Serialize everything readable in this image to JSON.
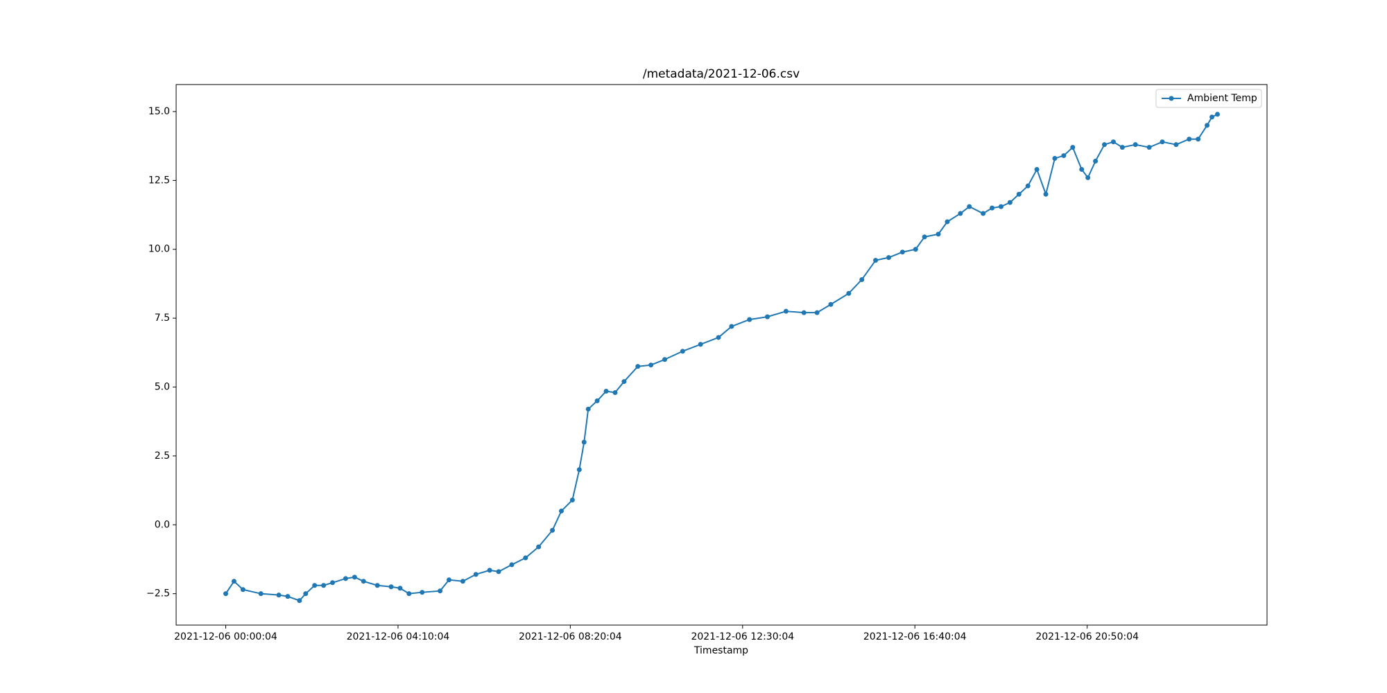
{
  "chart_data": {
    "type": "line",
    "title": "/metadata/2021-12-06.csv",
    "x_label": "Timestamp",
    "x": [
      "2021-12-06 00:00:04",
      "2021-12-06 00:12:04",
      "2021-12-06 00:25:04",
      "2021-12-06 00:51:04",
      "2021-12-06 01:17:04",
      "2021-12-06 01:30:04",
      "2021-12-06 01:47:04",
      "2021-12-06 01:56:04",
      "2021-12-06 02:09:04",
      "2021-12-06 02:22:04",
      "2021-12-06 02:35:04",
      "2021-12-06 02:54:04",
      "2021-12-06 03:07:04",
      "2021-12-06 03:20:04",
      "2021-12-06 03:40:04",
      "2021-12-06 04:00:04",
      "2021-12-06 04:13:04",
      "2021-12-06 04:26:04",
      "2021-12-06 04:45:04",
      "2021-12-06 05:11:04",
      "2021-12-06 05:24:04",
      "2021-12-06 05:44:04",
      "2021-12-06 06:03:04",
      "2021-12-06 06:23:04",
      "2021-12-06 06:36:04",
      "2021-12-06 06:55:04",
      "2021-12-06 07:15:04",
      "2021-12-06 07:34:04",
      "2021-12-06 07:54:04",
      "2021-12-06 08:07:04",
      "2021-12-06 08:23:04",
      "2021-12-06 08:33:04",
      "2021-12-06 08:40:04",
      "2021-12-06 08:46:04",
      "2021-12-06 08:59:04",
      "2021-12-06 09:12:04",
      "2021-12-06 09:25:04",
      "2021-12-06 09:38:04",
      "2021-12-06 09:58:04",
      "2021-12-06 10:17:04",
      "2021-12-06 10:37:04",
      "2021-12-06 11:03:04",
      "2021-12-06 11:29:04",
      "2021-12-06 11:55:04",
      "2021-12-06 12:14:04",
      "2021-12-06 12:40:04",
      "2021-12-06 13:06:04",
      "2021-12-06 13:33:04",
      "2021-12-06 13:59:04",
      "2021-12-06 14:18:04",
      "2021-12-06 14:38:04",
      "2021-12-06 15:04:04",
      "2021-12-06 15:23:04",
      "2021-12-06 15:43:04",
      "2021-12-06 16:02:04",
      "2021-12-06 16:22:04",
      "2021-12-06 16:41:04",
      "2021-12-06 16:54:04",
      "2021-12-06 17:14:04",
      "2021-12-06 17:27:04",
      "2021-12-06 17:46:04",
      "2021-12-06 17:59:04",
      "2021-12-06 18:19:04",
      "2021-12-06 18:32:04",
      "2021-12-06 18:45:04",
      "2021-12-06 18:58:04",
      "2021-12-06 19:11:04",
      "2021-12-06 19:24:04",
      "2021-12-06 19:37:04",
      "2021-12-06 19:50:04",
      "2021-12-06 20:03:04",
      "2021-12-06 20:16:04",
      "2021-12-06 20:29:04",
      "2021-12-06 20:42:04",
      "2021-12-06 20:51:04",
      "2021-12-06 21:02:04",
      "2021-12-06 21:15:04",
      "2021-12-06 21:28:04",
      "2021-12-06 21:41:04",
      "2021-12-06 22:00:04",
      "2021-12-06 22:20:04",
      "2021-12-06 22:39:04",
      "2021-12-06 22:59:04",
      "2021-12-06 23:18:04",
      "2021-12-06 23:31:04",
      "2021-12-06 23:44:04",
      "2021-12-06 23:51:04",
      "2021-12-06 23:59:04"
    ],
    "series": [
      {
        "name": "Ambient Temp",
        "color": "#1f77b4",
        "values": [
          -2.5,
          -2.05,
          -2.35,
          -2.5,
          -2.55,
          -2.6,
          -2.75,
          -2.5,
          -2.2,
          -2.2,
          -2.1,
          -1.95,
          -1.9,
          -2.05,
          -2.2,
          -2.25,
          -2.3,
          -2.5,
          -2.45,
          -2.4,
          -2.0,
          -2.05,
          -1.8,
          -1.65,
          -1.7,
          -1.45,
          -1.2,
          -0.8,
          -0.2,
          0.5,
          0.9,
          2.0,
          3.0,
          4.2,
          4.5,
          4.85,
          4.8,
          5.2,
          5.75,
          5.8,
          6.0,
          6.3,
          6.55,
          6.8,
          7.2,
          7.45,
          7.55,
          7.75,
          7.7,
          7.7,
          8.0,
          8.4,
          8.9,
          9.6,
          9.7,
          9.9,
          10.0,
          10.45,
          10.55,
          11.0,
          11.3,
          11.55,
          11.3,
          11.5,
          11.55,
          11.7,
          12.0,
          12.3,
          12.9,
          12.0,
          13.3,
          13.4,
          13.7,
          12.9,
          12.6,
          13.2,
          13.8,
          13.9,
          13.7,
          13.8,
          13.7,
          13.9,
          13.8,
          14.0,
          14.0,
          14.5,
          14.8,
          14.9
        ]
      }
    ],
    "xticks": [
      "2021-12-06 00:00:04",
      "2021-12-06 04:10:04",
      "2021-12-06 08:20:04",
      "2021-12-06 12:30:04",
      "2021-12-06 16:40:04",
      "2021-12-06 20:50:04"
    ],
    "ylim": [
      -3.64,
      15.98
    ],
    "yticks": [
      {
        "value": -2.5,
        "label": "−2.5"
      },
      {
        "value": 0,
        "label": "0.0"
      },
      {
        "value": 2.5,
        "label": "2.5"
      },
      {
        "value": 5,
        "label": "5.0"
      },
      {
        "value": 7.5,
        "label": "7.5"
      },
      {
        "value": 10,
        "label": "10.0"
      },
      {
        "value": 12.5,
        "label": "12.5"
      },
      {
        "value": 15,
        "label": "15.0"
      }
    ],
    "legend": "upper right",
    "markers": true
  }
}
